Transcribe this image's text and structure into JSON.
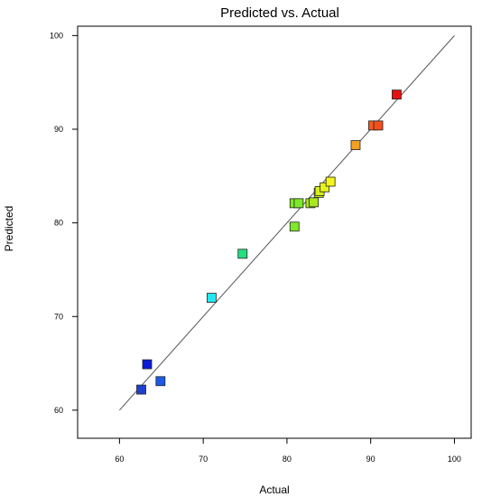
{
  "chart_data": {
    "type": "scatter",
    "title": "Predicted vs. Actual",
    "xlabel": "Actual",
    "ylabel": "Predicted",
    "xlim": [
      55,
      102
    ],
    "ylim": [
      57,
      101
    ],
    "xticks": [
      "60",
      "70",
      "80",
      "90",
      "100"
    ],
    "yticks": [
      "60",
      "70",
      "80",
      "90",
      "100"
    ],
    "xtick_values": [
      60,
      70,
      80,
      90,
      100
    ],
    "ytick_values": [
      60,
      70,
      80,
      90,
      100
    ],
    "grid": false,
    "reference_line": {
      "x": [
        60,
        100
      ],
      "y": [
        60,
        100
      ]
    },
    "points": [
      {
        "x": 62.6,
        "y": 62.2,
        "color": "#1f3fd0"
      },
      {
        "x": 63.3,
        "y": 64.9,
        "color": "#0a1ad8"
      },
      {
        "x": 64.9,
        "y": 63.1,
        "color": "#1c5ae8"
      },
      {
        "x": 71.0,
        "y": 72.0,
        "color": "#22e8ee"
      },
      {
        "x": 74.7,
        "y": 76.7,
        "color": "#22e080"
      },
      {
        "x": 80.9,
        "y": 79.6,
        "color": "#7ee82a"
      },
      {
        "x": 80.9,
        "y": 82.1,
        "color": "#7ee82a"
      },
      {
        "x": 81.4,
        "y": 82.1,
        "color": "#7ee82a"
      },
      {
        "x": 82.8,
        "y": 82.1,
        "color": "#a8e81e"
      },
      {
        "x": 83.2,
        "y": 82.2,
        "color": "#a8e81e"
      },
      {
        "x": 83.8,
        "y": 83.2,
        "color": "#c8ee1a"
      },
      {
        "x": 83.9,
        "y": 83.4,
        "color": "#d8f01a"
      },
      {
        "x": 84.5,
        "y": 83.8,
        "color": "#e6f41a"
      },
      {
        "x": 85.2,
        "y": 84.4,
        "color": "#f4f41a"
      },
      {
        "x": 88.2,
        "y": 88.3,
        "color": "#f4a020"
      },
      {
        "x": 90.3,
        "y": 90.4,
        "color": "#f45a1e"
      },
      {
        "x": 90.9,
        "y": 90.4,
        "color": "#f4501e"
      },
      {
        "x": 93.1,
        "y": 93.7,
        "color": "#e81010"
      }
    ]
  }
}
